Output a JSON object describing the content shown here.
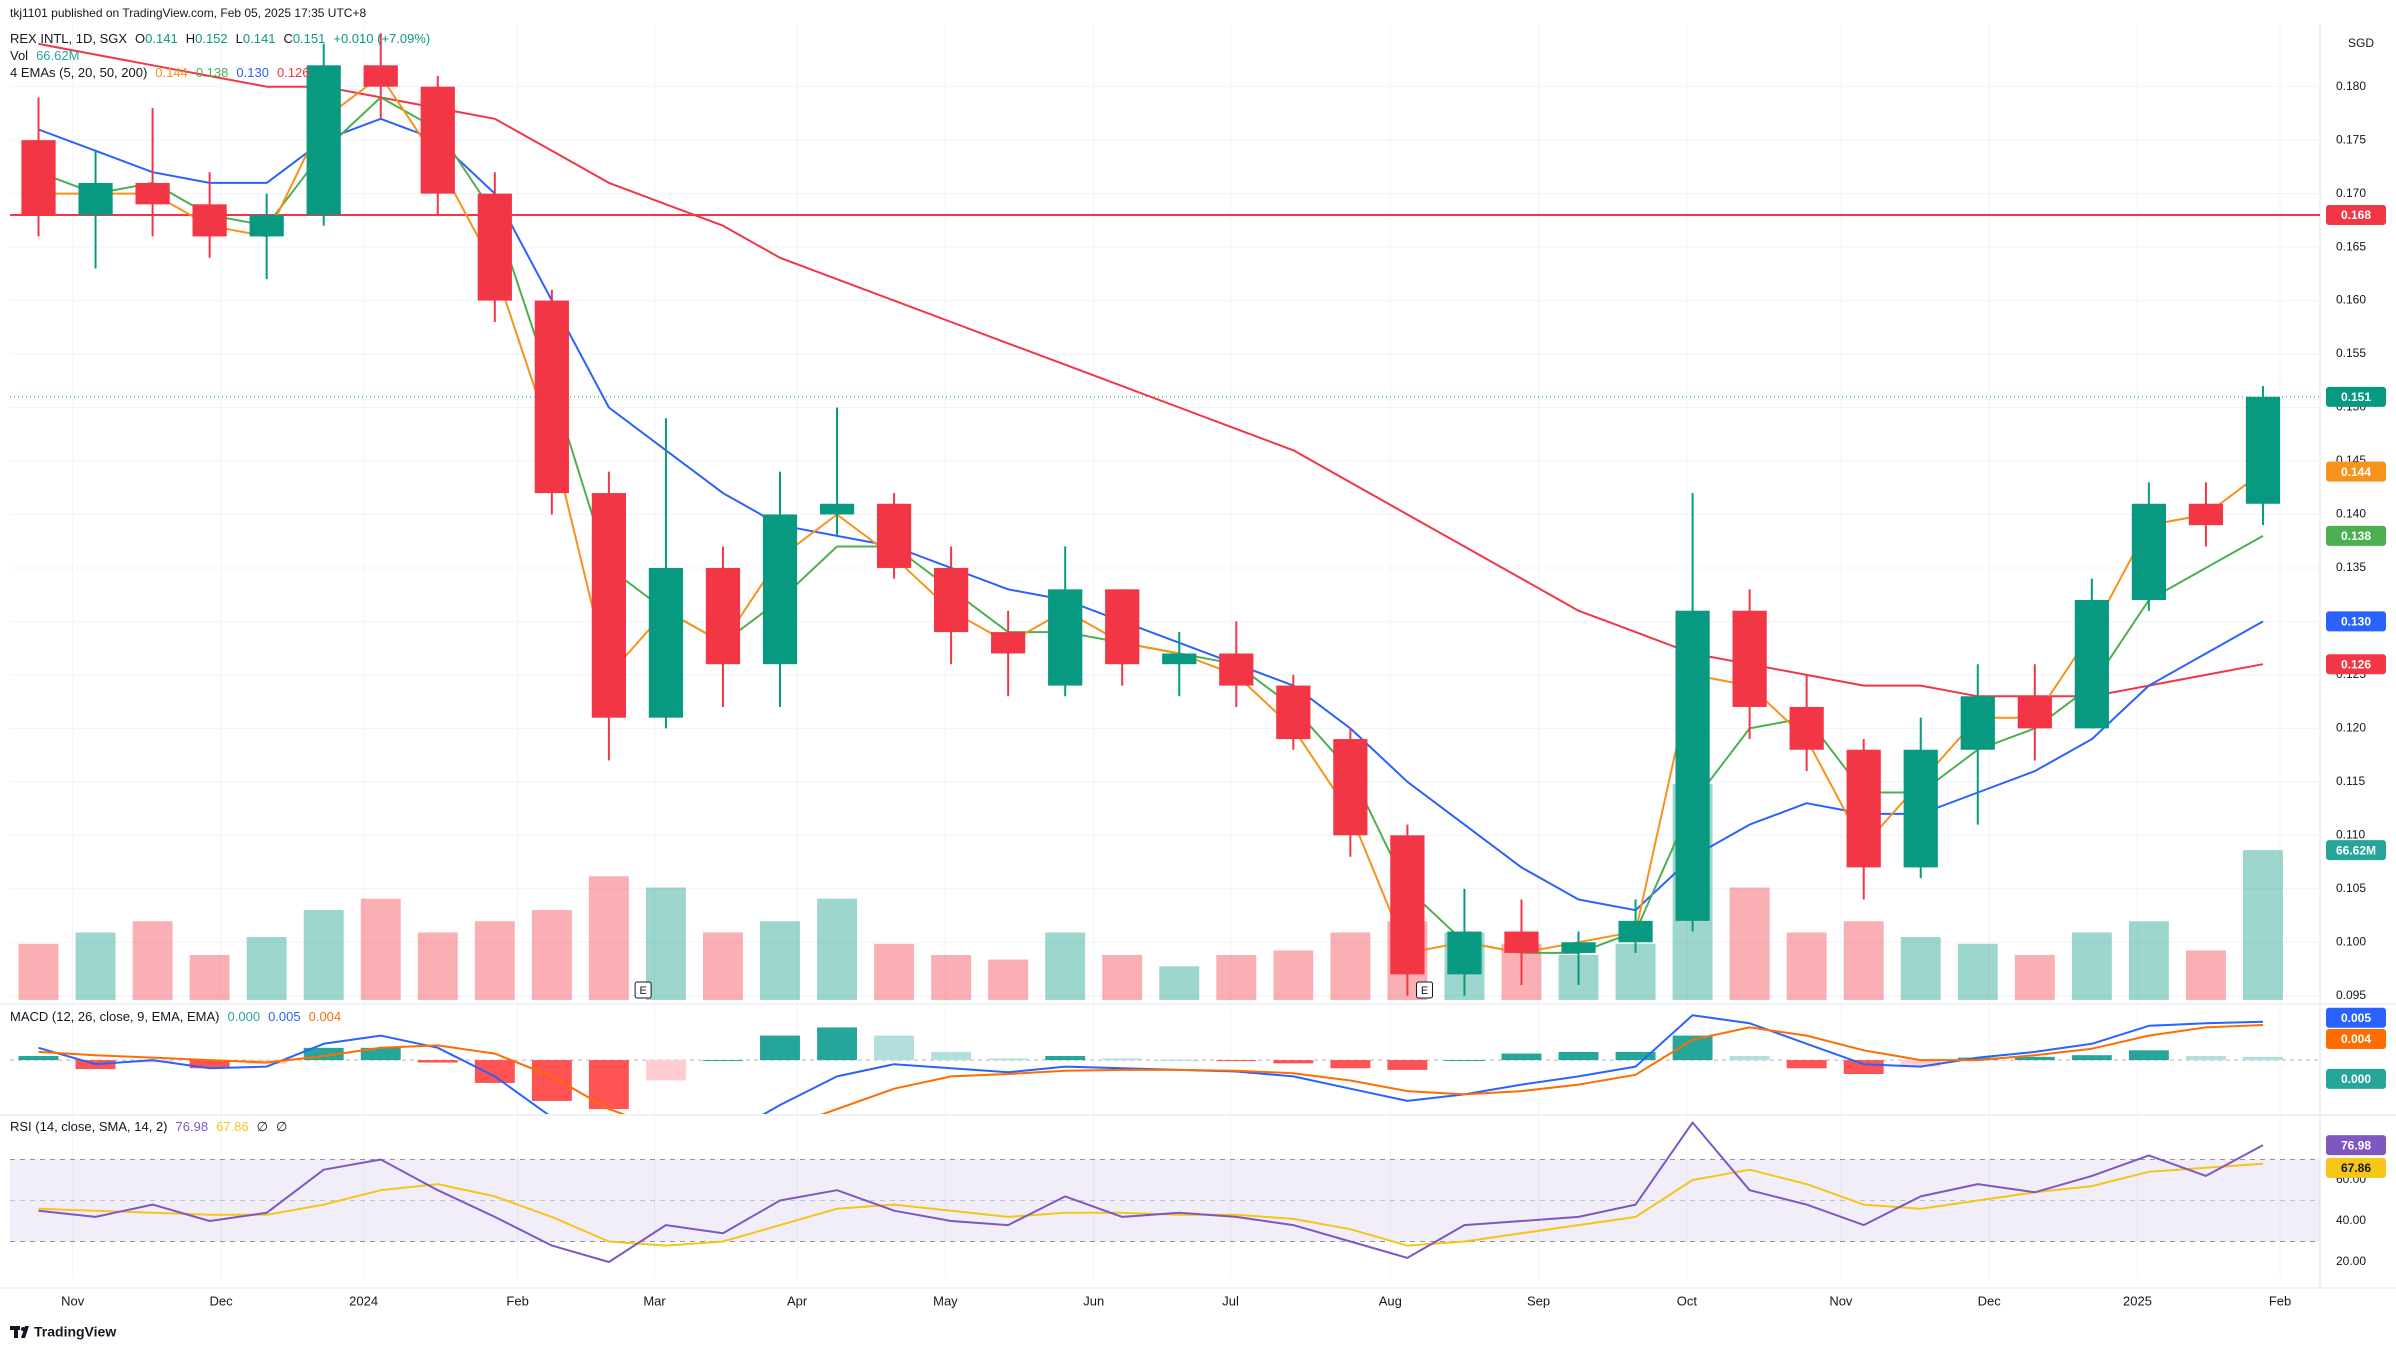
{
  "chart_data": {
    "type": "candlestick",
    "header": "tkj1101 published on TradingView.com, Feb 05, 2025 17:35 UTC+8",
    "title": "REX INTL, 1D, SGX",
    "ohlc_legend": [
      {
        "key": "O",
        "value": "0.141"
      },
      {
        "key": "H",
        "value": "0.152"
      },
      {
        "key": "L",
        "value": "0.141"
      },
      {
        "key": "C",
        "value": "0.151"
      }
    ],
    "change": "+0.010 (+7.09%)",
    "currency": "SGD",
    "up_color": "#089981",
    "down_color": "#f23645",
    "grid": true,
    "xlim": [
      -0.5,
      40
    ],
    "xticks": [
      {
        "value": 0.6,
        "label": "Nov"
      },
      {
        "value": 3.2,
        "label": "Dec"
      },
      {
        "value": 5.7,
        "label": "2024"
      },
      {
        "value": 8.4,
        "label": "Feb"
      },
      {
        "value": 10.8,
        "label": "Mar"
      },
      {
        "value": 13.3,
        "label": "Apr"
      },
      {
        "value": 15.9,
        "label": "May"
      },
      {
        "value": 18.5,
        "label": "Jun"
      },
      {
        "value": 20.9,
        "label": "Jul"
      },
      {
        "value": 23.7,
        "label": "Aug"
      },
      {
        "value": 26.3,
        "label": "Sep"
      },
      {
        "value": 28.9,
        "label": "Oct"
      },
      {
        "value": 31.6,
        "label": "Nov"
      },
      {
        "value": 34.2,
        "label": "Dec"
      },
      {
        "value": 36.8,
        "label": "2025"
      },
      {
        "value": 39.3,
        "label": "Feb"
      }
    ],
    "ylim": [
      0.0946,
      0.1853
    ],
    "yticks": [
      0.095,
      {
        "value": 0.1,
        "label": "0.100"
      },
      0.105,
      {
        "value": 0.11,
        "label": "0.110"
      },
      0.115,
      {
        "value": 0.12,
        "label": "0.120"
      },
      0.125,
      {
        "value": 0.13,
        "label": "0.130"
      },
      0.135,
      {
        "value": 0.14,
        "label": "0.140"
      },
      0.145,
      {
        "value": 0.15,
        "label": "0.150"
      },
      0.155,
      {
        "value": 0.16,
        "label": "0.160"
      },
      0.165,
      {
        "value": 0.17,
        "label": "0.170"
      },
      0.175,
      {
        "value": 0.18,
        "label": "0.180"
      }
    ],
    "open": [
      0.175,
      0.168,
      0.171,
      0.169,
      0.166,
      0.168,
      0.182,
      0.18,
      0.17,
      0.16,
      0.142,
      0.121,
      0.135,
      0.126,
      0.14,
      0.141,
      0.135,
      0.129,
      0.124,
      0.133,
      0.126,
      0.127,
      0.124,
      0.119,
      0.11,
      0.097,
      0.101,
      0.099,
      0.1,
      0.102,
      0.131,
      0.122,
      0.118,
      0.107,
      0.118,
      0.123,
      0.12,
      0.132,
      0.141,
      0.141
    ],
    "high": [
      0.179,
      0.174,
      0.178,
      0.172,
      0.17,
      0.184,
      0.185,
      0.181,
      0.172,
      0.161,
      0.144,
      0.149,
      0.137,
      0.144,
      0.15,
      0.142,
      0.137,
      0.131,
      0.137,
      0.133,
      0.129,
      0.13,
      0.125,
      0.12,
      0.111,
      0.105,
      0.104,
      0.101,
      0.104,
      0.142,
      0.133,
      0.125,
      0.119,
      0.121,
      0.126,
      0.126,
      0.134,
      0.143,
      0.143,
      0.152
    ],
    "low": [
      0.166,
      0.163,
      0.166,
      0.164,
      0.162,
      0.167,
      0.177,
      0.168,
      0.158,
      0.14,
      0.117,
      0.12,
      0.122,
      0.122,
      0.138,
      0.134,
      0.126,
      0.123,
      0.123,
      0.124,
      0.123,
      0.122,
      0.118,
      0.108,
      0.095,
      0.095,
      0.096,
      0.096,
      0.099,
      0.101,
      0.119,
      0.116,
      0.104,
      0.106,
      0.111,
      0.117,
      0.12,
      0.131,
      0.137,
      0.139
    ],
    "close": [
      0.168,
      0.171,
      0.169,
      0.166,
      0.168,
      0.182,
      0.18,
      0.17,
      0.16,
      0.142,
      0.121,
      0.135,
      0.126,
      0.14,
      0.141,
      0.135,
      0.129,
      0.127,
      0.133,
      0.126,
      0.127,
      0.124,
      0.119,
      0.11,
      0.097,
      0.101,
      0.099,
      0.1,
      0.102,
      0.131,
      0.122,
      0.118,
      0.107,
      0.118,
      0.123,
      0.12,
      0.132,
      0.141,
      0.139,
      0.151
    ],
    "volume": {
      "title": "Vol",
      "legend_value": "66.62M",
      "color": "#26a69a",
      "values": [
        25,
        30,
        35,
        20,
        28,
        40,
        45,
        30,
        35,
        40,
        55,
        50,
        30,
        35,
        45,
        25,
        20,
        18,
        30,
        20,
        15,
        20,
        22,
        30,
        35,
        30,
        25,
        20,
        25,
        96,
        50,
        30,
        35,
        28,
        25,
        20,
        30,
        35,
        22,
        66.62
      ]
    },
    "ema": {
      "title": "4 EMAs (5, 20, 50, 200)",
      "series": [
        {
          "color": "#f7931a",
          "legend_value": "0.144",
          "values": [
            0.17,
            0.17,
            0.17,
            0.167,
            0.166,
            0.177,
            0.181,
            0.173,
            0.163,
            0.147,
            0.125,
            0.131,
            0.128,
            0.136,
            0.14,
            0.136,
            0.131,
            0.128,
            0.131,
            0.128,
            0.127,
            0.125,
            0.12,
            0.112,
            0.099,
            0.1,
            0.099,
            0.1,
            0.101,
            0.125,
            0.124,
            0.119,
            0.109,
            0.115,
            0.121,
            0.121,
            0.129,
            0.139,
            0.14,
            0.144
          ]
        },
        {
          "color": "#4caf50",
          "legend_value": "0.138",
          "values": [
            0.172,
            0.17,
            0.171,
            0.168,
            0.167,
            0.174,
            0.179,
            0.176,
            0.168,
            0.152,
            0.135,
            0.131,
            0.128,
            0.132,
            0.137,
            0.137,
            0.133,
            0.129,
            0.129,
            0.128,
            0.127,
            0.126,
            0.122,
            0.116,
            0.105,
            0.1,
            0.099,
            0.099,
            0.101,
            0.113,
            0.12,
            0.121,
            0.114,
            0.114,
            0.118,
            0.12,
            0.124,
            0.132,
            0.135,
            0.138
          ]
        },
        {
          "color": "#2962ff",
          "legend_value": "0.130",
          "values": [
            0.176,
            0.174,
            0.172,
            0.171,
            0.171,
            0.175,
            0.177,
            0.175,
            0.17,
            0.16,
            0.15,
            0.146,
            0.142,
            0.139,
            0.138,
            0.137,
            0.135,
            0.133,
            0.132,
            0.13,
            0.128,
            0.126,
            0.124,
            0.12,
            0.115,
            0.111,
            0.107,
            0.104,
            0.103,
            0.108,
            0.111,
            0.113,
            0.112,
            0.112,
            0.114,
            0.116,
            0.119,
            0.124,
            0.127,
            0.13
          ]
        },
        {
          "color": "#f23645",
          "legend_value": "0.126",
          "values": [
            0.184,
            0.183,
            0.182,
            0.181,
            0.18,
            0.18,
            0.179,
            0.178,
            0.177,
            0.174,
            0.171,
            0.169,
            0.167,
            0.164,
            0.162,
            0.16,
            0.158,
            0.156,
            0.154,
            0.152,
            0.15,
            0.148,
            0.146,
            0.143,
            0.14,
            0.137,
            0.134,
            0.131,
            0.129,
            0.127,
            0.126,
            0.125,
            0.124,
            0.124,
            0.123,
            0.123,
            0.123,
            0.124,
            0.125,
            0.126
          ]
        }
      ]
    },
    "levels": [
      {
        "value": 0.168,
        "color": "#f23645"
      }
    ],
    "earnings": [
      {
        "x": 10.6,
        "label": "E"
      },
      {
        "x": 24.3,
        "label": "E"
      }
    ],
    "macd": {
      "title": "MACD (12, 26, close, 9, EMA, EMA)",
      "legend_values": [
        "0.000",
        "0.005",
        "0.004"
      ],
      "ylim": [
        -0.0066,
        0.0065
      ],
      "histogram": [
        0.0005,
        -0.0011,
        -0.0003,
        -0.001,
        -0.0005,
        0.0015,
        0.0015,
        -0.0003,
        -0.0028,
        -0.005,
        -0.006,
        -0.0025,
        0.0,
        0.003,
        0.004,
        0.003,
        0.001,
        0.0002,
        0.0005,
        0.0002,
        0.0,
        -0.0001,
        -0.0004,
        -0.001,
        -0.0012,
        0.0,
        0.0008,
        0.001,
        0.001,
        0.003,
        0.0005,
        -0.001,
        -0.0017,
        -0.0008,
        0.0003,
        0.0004,
        0.0006,
        0.0012,
        0.0005,
        0.0004
      ],
      "macd": {
        "color": "#2962ff",
        "values": [
          0.0015,
          -0.0005,
          0.0,
          -0.001,
          -0.0008,
          0.002,
          0.003,
          0.0015,
          -0.002,
          -0.007,
          -0.012,
          -0.011,
          -0.0095,
          -0.0055,
          -0.002,
          -0.0005,
          -0.001,
          -0.0015,
          -0.0008,
          -0.001,
          -0.0012,
          -0.0014,
          -0.002,
          -0.0035,
          -0.005,
          -0.0042,
          -0.003,
          -0.002,
          -0.0008,
          0.0055,
          0.0045,
          0.002,
          -0.0005,
          -0.0008,
          0.0003,
          0.001,
          0.002,
          0.0042,
          0.0045,
          0.0047
        ]
      },
      "signal": {
        "color": "#ff6d00",
        "values": [
          0.001,
          0.0006,
          0.0003,
          0.0,
          -0.0003,
          0.0005,
          0.0015,
          0.0018,
          0.0008,
          -0.002,
          -0.006,
          -0.0085,
          -0.0095,
          -0.0085,
          -0.006,
          -0.0035,
          -0.002,
          -0.0017,
          -0.0013,
          -0.0012,
          -0.0012,
          -0.0013,
          -0.0016,
          -0.0025,
          -0.0038,
          -0.0042,
          -0.0038,
          -0.003,
          -0.0018,
          0.0025,
          0.004,
          0.003,
          0.0012,
          0.0,
          0.0,
          0.0006,
          0.0014,
          0.003,
          0.004,
          0.0043
        ]
      }
    },
    "rsi": {
      "title": "RSI (14, close, SMA, 14, 2)",
      "legend_values": [
        "76.98",
        "67.86",
        "∅",
        "∅"
      ],
      "ylim": [
        12.2,
        90.7
      ],
      "yticks": [
        {
          "value": 20,
          "label": "20.00"
        },
        {
          "value": 40,
          "label": "40.00"
        },
        {
          "value": 60,
          "label": "60.00"
        }
      ],
      "bands": [
        30,
        50,
        70
      ],
      "rsi": {
        "color": "#7e57c2",
        "values": [
          45,
          42,
          48,
          40,
          44,
          65,
          70,
          55,
          42,
          28,
          20,
          38,
          34,
          50,
          55,
          45,
          40,
          38,
          52,
          42,
          44,
          42,
          38,
          30,
          22,
          38,
          40,
          42,
          48,
          88,
          55,
          48,
          38,
          52,
          58,
          54,
          62,
          72,
          62,
          76.98
        ]
      },
      "ma": {
        "color": "#f5c518",
        "values": [
          46,
          45,
          44,
          43,
          43,
          48,
          55,
          58,
          52,
          42,
          30,
          28,
          30,
          38,
          46,
          48,
          45,
          42,
          44,
          44,
          43,
          43,
          41,
          36,
          28,
          30,
          34,
          38,
          42,
          60,
          65,
          58,
          48,
          46,
          50,
          54,
          57,
          64,
          66,
          67.86
        ]
      }
    },
    "footer": "TradingView"
  }
}
